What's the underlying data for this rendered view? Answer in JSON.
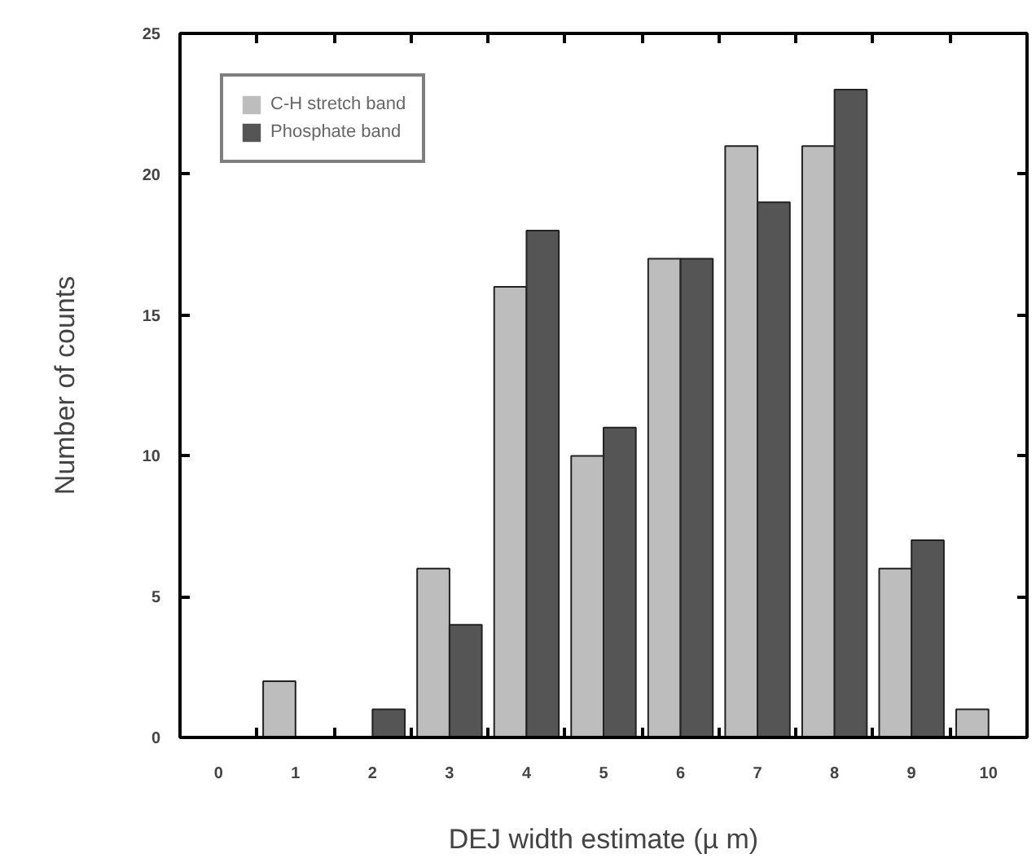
{
  "chart_data": {
    "type": "bar",
    "xlabel": "DEJ width estimate (µ m)",
    "ylabel": "Number of counts",
    "categories": [
      "0",
      "1",
      "2",
      "3",
      "4",
      "5",
      "6",
      "7",
      "8",
      "9",
      "10"
    ],
    "series": [
      {
        "name": "C-H stretch band",
        "color": "#bdbdbd",
        "values": [
          0,
          2,
          0,
          6,
          16,
          10,
          17,
          21,
          21,
          6,
          1
        ]
      },
      {
        "name": "Phosphate band",
        "color": "#555555",
        "values": [
          0,
          0,
          1,
          4,
          18,
          11,
          17,
          19,
          23,
          7,
          0
        ]
      }
    ],
    "ylim": [
      0,
      25
    ],
    "yticks": [
      0,
      5,
      10,
      15,
      20,
      25
    ],
    "grid": false,
    "legend": "top left"
  }
}
